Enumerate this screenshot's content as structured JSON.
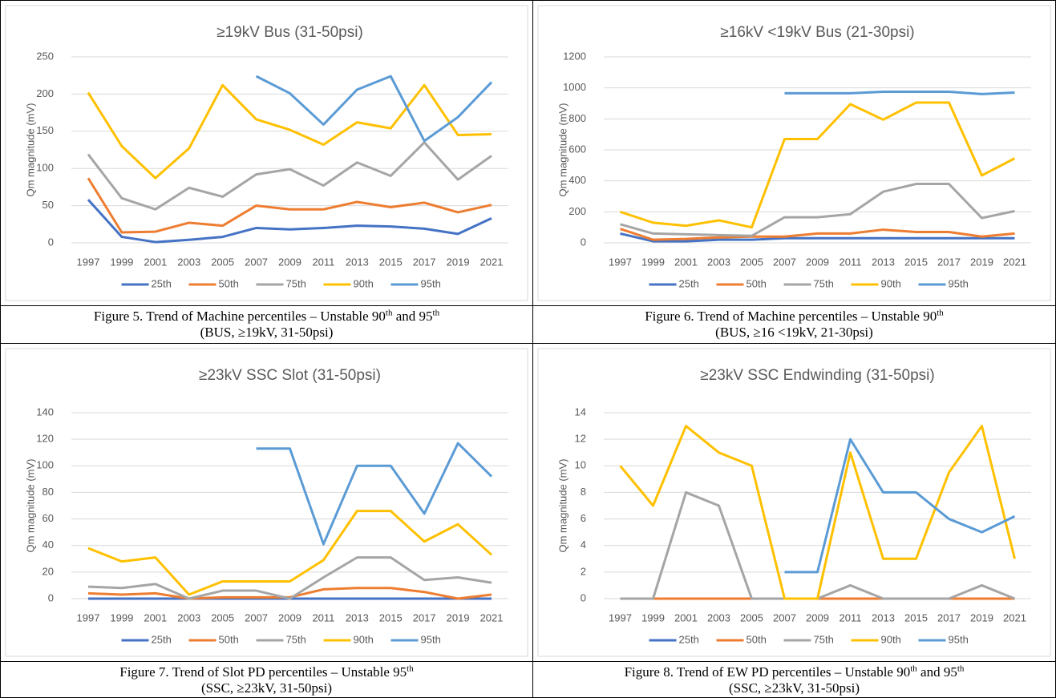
{
  "chart_data": [
    {
      "type": "line",
      "title": "≥19kV Bus (31-50psi)",
      "ylabel": "Qm magnitude (mV)",
      "categories": [
        "1997",
        "1999",
        "2001",
        "2003",
        "2005",
        "2007",
        "2009",
        "2011",
        "2013",
        "2015",
        "2017",
        "2019",
        "2021"
      ],
      "ylim": [
        0,
        250
      ],
      "yticks": [
        0,
        50,
        100,
        150,
        200,
        250
      ],
      "grid": true,
      "legend": "bottom",
      "series": [
        {
          "name": "25th",
          "color": "#4472c4",
          "values": [
            58,
            8,
            1,
            4,
            8,
            20,
            18,
            20,
            23,
            22,
            19,
            12,
            33
          ]
        },
        {
          "name": "50th",
          "color": "#ed7d31",
          "values": [
            87,
            14,
            15,
            27,
            23,
            50,
            45,
            45,
            55,
            48,
            54,
            41,
            51
          ]
        },
        {
          "name": "75th",
          "color": "#a5a5a5",
          "values": [
            119,
            60,
            45,
            74,
            62,
            92,
            99,
            77,
            108,
            90,
            135,
            85,
            117
          ]
        },
        {
          "name": "90th",
          "color": "#ffc000",
          "values": [
            202,
            130,
            87,
            127,
            212,
            166,
            152,
            132,
            162,
            154,
            212,
            145,
            146
          ]
        },
        {
          "name": "95th",
          "color": "#5b9bd5",
          "values": [
            null,
            null,
            null,
            null,
            null,
            224,
            201,
            159,
            206,
            224,
            137,
            169,
            216
          ]
        }
      ]
    },
    {
      "type": "line",
      "title": "≥16kV <19kV Bus (21-30psi)",
      "ylabel": "Qm magnitude (mV)",
      "categories": [
        "1997",
        "1999",
        "2001",
        "2003",
        "2005",
        "2007",
        "2009",
        "2011",
        "2013",
        "2015",
        "2017",
        "2019",
        "2021"
      ],
      "ylim": [
        0,
        1200
      ],
      "yticks": [
        0,
        200,
        400,
        600,
        800,
        1000,
        1200
      ],
      "grid": true,
      "legend": "bottom",
      "series": [
        {
          "name": "25th",
          "color": "#4472c4",
          "values": [
            60,
            10,
            10,
            20,
            20,
            30,
            30,
            30,
            30,
            30,
            30,
            30,
            30
          ]
        },
        {
          "name": "50th",
          "color": "#ed7d31",
          "values": [
            90,
            20,
            25,
            35,
            40,
            40,
            60,
            60,
            85,
            70,
            70,
            40,
            60
          ]
        },
        {
          "name": "75th",
          "color": "#a5a5a5",
          "values": [
            120,
            60,
            55,
            50,
            45,
            165,
            165,
            185,
            330,
            380,
            380,
            160,
            205
          ]
        },
        {
          "name": "90th",
          "color": "#ffc000",
          "values": [
            200,
            130,
            110,
            145,
            100,
            670,
            670,
            895,
            795,
            905,
            905,
            435,
            545
          ]
        },
        {
          "name": "95th",
          "color": "#5b9bd5",
          "values": [
            null,
            null,
            null,
            null,
            null,
            965,
            965,
            965,
            975,
            975,
            975,
            960,
            970
          ]
        }
      ]
    },
    {
      "type": "line",
      "title": "≥23kV SSC Slot (31-50psi)",
      "ylabel": "Qm magnitude (mV)",
      "categories": [
        "1997",
        "1999",
        "2001",
        "2003",
        "2005",
        "2007",
        "2009",
        "2011",
        "2013",
        "2015",
        "2017",
        "2019",
        "2021"
      ],
      "ylim": [
        0,
        140
      ],
      "yticks": [
        0,
        20,
        40,
        60,
        80,
        100,
        120,
        140
      ],
      "grid": true,
      "legend": "bottom",
      "series": [
        {
          "name": "25th",
          "color": "#4472c4",
          "values": [
            0,
            0,
            0,
            0,
            0,
            0,
            0,
            0,
            0,
            0,
            0,
            0,
            0
          ]
        },
        {
          "name": "50th",
          "color": "#ed7d31",
          "values": [
            4,
            3,
            4,
            0,
            1,
            1,
            1,
            7,
            8,
            8,
            5,
            0,
            3
          ]
        },
        {
          "name": "75th",
          "color": "#a5a5a5",
          "values": [
            9,
            8,
            11,
            0,
            6,
            6,
            0,
            16,
            31,
            31,
            14,
            16,
            12
          ]
        },
        {
          "name": "90th",
          "color": "#ffc000",
          "values": [
            38,
            28,
            31,
            3,
            13,
            13,
            13,
            29,
            66,
            66,
            43,
            56,
            33
          ]
        },
        {
          "name": "95th",
          "color": "#5b9bd5",
          "values": [
            null,
            null,
            null,
            null,
            null,
            113,
            113,
            41,
            100,
            100,
            64,
            117,
            92
          ]
        }
      ]
    },
    {
      "type": "line",
      "title": "≥23kV SSC Endwinding (31-50psi)",
      "ylabel": "Qm magnitude (mV)",
      "categories": [
        "1997",
        "1999",
        "2001",
        "2003",
        "2005",
        "2007",
        "2009",
        "2011",
        "2013",
        "2015",
        "2017",
        "2019",
        "2021"
      ],
      "ylim": [
        0,
        14
      ],
      "yticks": [
        0,
        2,
        4,
        6,
        8,
        10,
        12,
        14
      ],
      "grid": true,
      "legend": "bottom",
      "series": [
        {
          "name": "25th",
          "color": "#4472c4",
          "values": [
            0,
            0,
            0,
            0,
            0,
            0,
            0,
            0,
            0,
            0,
            0,
            0,
            0
          ]
        },
        {
          "name": "50th",
          "color": "#ed7d31",
          "values": [
            0,
            0,
            0,
            0,
            0,
            0,
            0,
            0,
            0,
            0,
            0,
            0,
            0
          ]
        },
        {
          "name": "75th",
          "color": "#a5a5a5",
          "values": [
            0,
            0,
            8,
            7,
            0,
            0,
            0,
            1,
            0,
            0,
            0,
            1,
            0
          ]
        },
        {
          "name": "90th",
          "color": "#ffc000",
          "values": [
            10,
            7,
            13,
            11,
            10,
            0,
            0,
            11,
            3,
            3,
            9.5,
            13,
            3
          ]
        },
        {
          "name": "95th",
          "color": "#5b9bd5",
          "values": [
            null,
            null,
            null,
            null,
            null,
            2,
            2,
            12,
            8,
            8,
            6,
            5,
            6.2
          ]
        }
      ]
    }
  ],
  "captions": [
    [
      "Figure 5.  Trend of Machine percentiles – Unstable 90",
      "th",
      " and 95",
      "th",
      "(BUS, ≥19kV, 31-50psi)"
    ],
    [
      "Figure 6.  Trend of Machine percentiles – Unstable 90",
      "th",
      "(BUS, ≥16 <19kV, 21-30psi)"
    ],
    [
      "Figure 7.  Trend of Slot PD percentiles – Unstable 95",
      "th",
      "(SSC, ≥23kV, 31-50psi)"
    ],
    [
      "Figure 8. Trend of EW PD percentiles – Unstable 90",
      "th",
      " and 95",
      "th",
      "(SSC, ≥23kV, 31-50psi)"
    ]
  ]
}
